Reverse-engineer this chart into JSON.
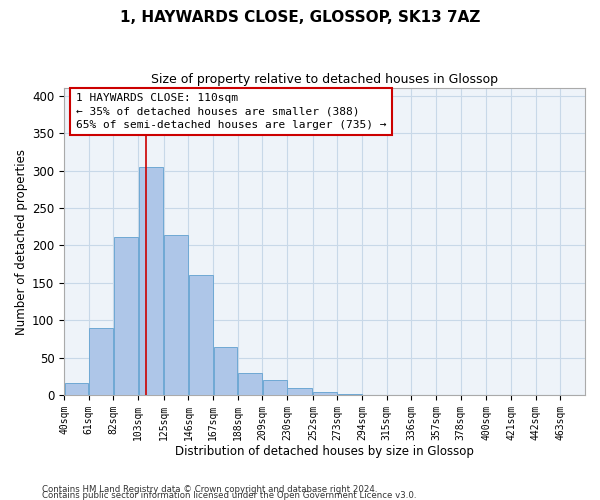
{
  "title": "1, HAYWARDS CLOSE, GLOSSOP, SK13 7AZ",
  "subtitle": "Size of property relative to detached houses in Glossop",
  "xlabel": "Distribution of detached houses by size in Glossop",
  "ylabel": "Number of detached properties",
  "bar_left_edges": [
    40,
    61,
    82,
    103,
    125,
    146,
    167,
    188,
    209,
    230,
    252,
    273,
    294,
    315,
    336,
    357,
    378,
    400,
    421,
    442
  ],
  "bar_widths": [
    21,
    21,
    21,
    22,
    21,
    21,
    21,
    21,
    21,
    22,
    21,
    21,
    21,
    21,
    21,
    21,
    22,
    21,
    21,
    21
  ],
  "bar_heights": [
    17,
    90,
    211,
    305,
    214,
    161,
    64,
    30,
    20,
    10,
    5,
    2,
    0,
    0,
    0,
    1,
    0,
    0,
    0,
    1
  ],
  "bar_color": "#aec6e8",
  "bar_edge_color": "#6fa8d4",
  "tick_labels": [
    "40sqm",
    "61sqm",
    "82sqm",
    "103sqm",
    "125sqm",
    "146sqm",
    "167sqm",
    "188sqm",
    "209sqm",
    "230sqm",
    "252sqm",
    "273sqm",
    "294sqm",
    "315sqm",
    "336sqm",
    "357sqm",
    "378sqm",
    "400sqm",
    "421sqm",
    "442sqm",
    "463sqm"
  ],
  "tick_positions": [
    40,
    61,
    82,
    103,
    125,
    146,
    167,
    188,
    209,
    230,
    252,
    273,
    294,
    315,
    336,
    357,
    378,
    400,
    421,
    442,
    463
  ],
  "vline_x": 110,
  "vline_color": "#cc0000",
  "ann_line1": "1 HAYWARDS CLOSE: 110sqm",
  "ann_line2": "← 35% of detached houses are smaller (388)",
  "ann_line3": "65% of semi-detached houses are larger (735) →",
  "ylim": [
    0,
    410
  ],
  "xlim": [
    40,
    484
  ],
  "yticks": [
    0,
    50,
    100,
    150,
    200,
    250,
    300,
    350,
    400
  ],
  "footer_line1": "Contains HM Land Registry data © Crown copyright and database right 2024.",
  "footer_line2": "Contains public sector information licensed under the Open Government Licence v3.0.",
  "background_color": "#ffffff",
  "plot_bg_color": "#eef3f9",
  "grid_color": "#c8d8e8"
}
